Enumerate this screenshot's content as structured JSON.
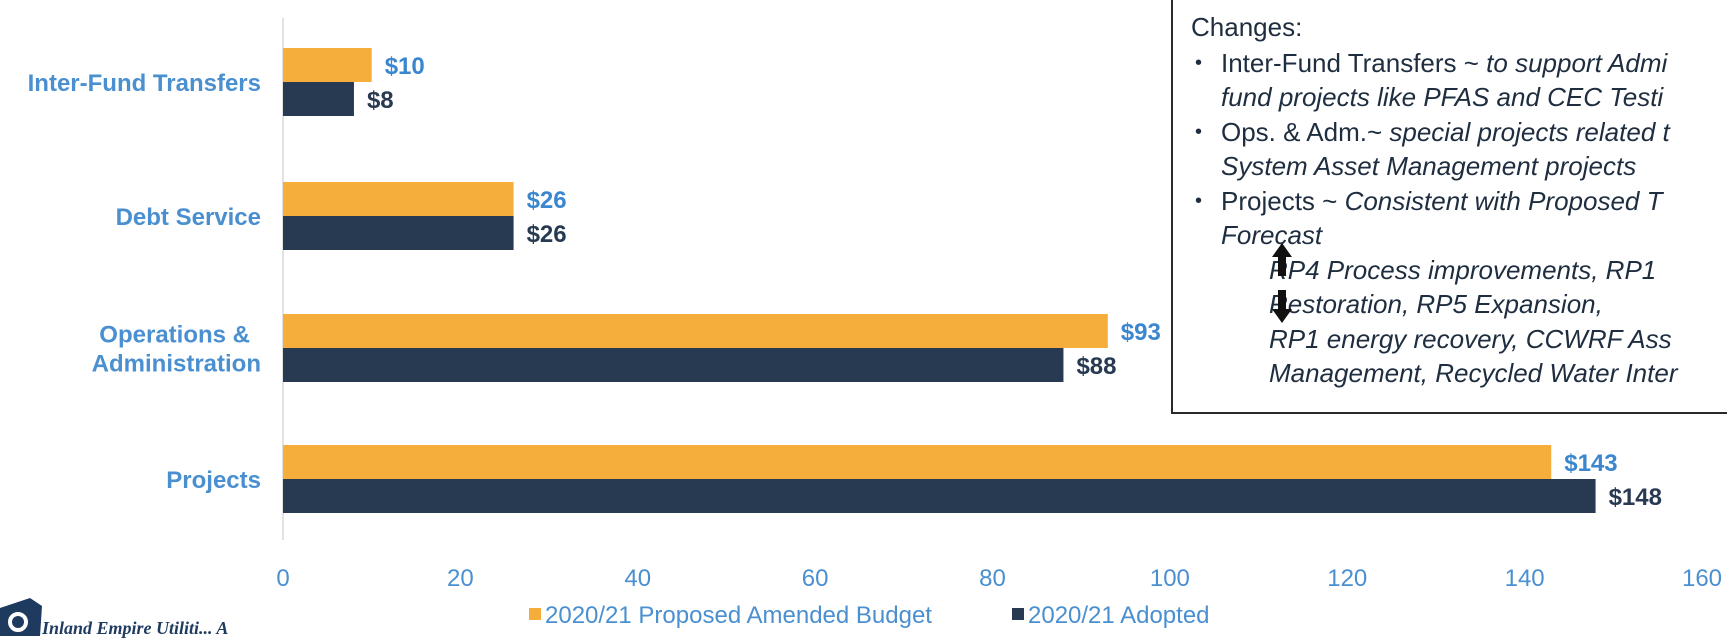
{
  "chart_data": {
    "type": "bar",
    "orientation": "horizontal",
    "categories": [
      "Inter-Fund Transfers",
      "Debt Service",
      "Operations & Administration",
      "Projects"
    ],
    "category_lines": [
      [
        "Inter-Fund Transfers"
      ],
      [
        "Debt Service"
      ],
      [
        "Operations &",
        "Administration"
      ],
      [
        "Projects"
      ]
    ],
    "series": [
      {
        "name": "2020/21 Proposed Amended Budget",
        "values": [
          10,
          26,
          93,
          143
        ],
        "labels": [
          "$10",
          "$26",
          "$93",
          "$143"
        ],
        "color": "#f5ad3c",
        "label_color": "#3a86cf"
      },
      {
        "name": "2020/21 Adopted",
        "values": [
          8,
          26,
          88,
          148
        ],
        "labels": [
          "$8",
          "$26",
          "$88",
          "$148"
        ],
        "color": "#283a52",
        "label_color": "#283a52"
      }
    ],
    "xlim": [
      0,
      160
    ],
    "xticks": [
      0,
      20,
      40,
      60,
      80,
      100,
      120,
      140,
      160
    ],
    "grid": false,
    "legend_position": "bottom"
  },
  "changes_box": {
    "heading": "Changes:",
    "bullets": [
      {
        "lead": "Inter-Fund Transfers ~ ",
        "detail_lines": [
          "to support Admi",
          "fund projects like PFAS and CEC Testi"
        ]
      },
      {
        "lead": "Ops. & Adm.~ ",
        "detail_lines": [
          "special projects related t",
          "System Asset Management projects"
        ]
      },
      {
        "lead": "Projects ~  ",
        "detail_lines": [
          "Consistent with Proposed T",
          "Forecast"
        ]
      }
    ],
    "sub_lines": [
      "RP4  Process improvements, RP1",
      "Restoration, RP5 Expansion,",
      "RP1 energy recovery, CCWRF Ass",
      "Management, Recycled Water Inter"
    ]
  },
  "footer": {
    "org_name": "Inland Empire Utiliti... A"
  },
  "icons": {
    "logo": "agency-seal-logo",
    "arrow_up": "arrow-up-icon",
    "arrow_down": "arrow-down-icon"
  }
}
